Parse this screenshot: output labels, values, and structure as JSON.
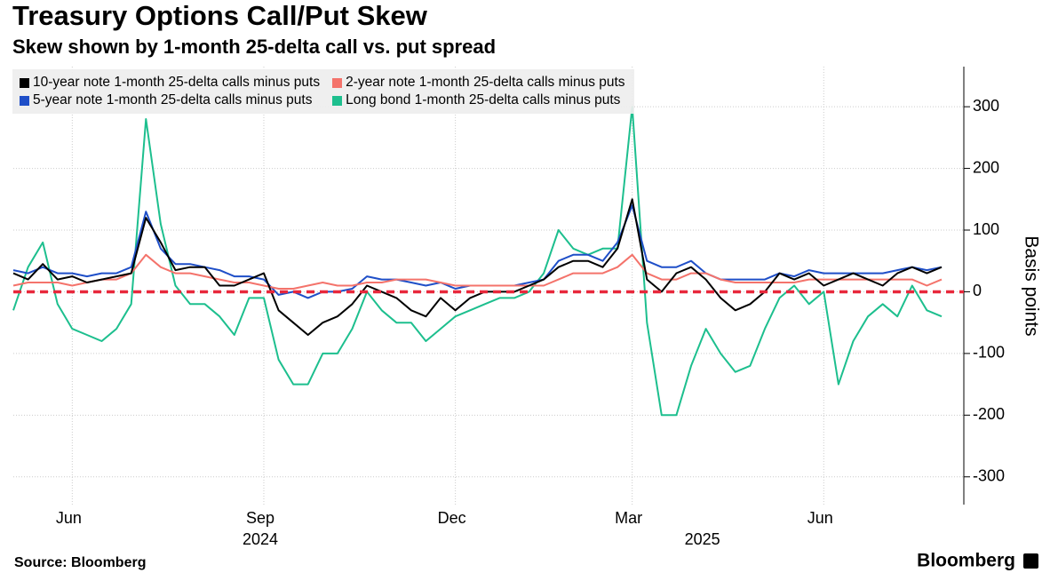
{
  "chart_data": {
    "type": "line",
    "title": "Treasury Options Call/Put Skew",
    "subtitle": "Skew shown by 1-month 25-delta call vs. put spread",
    "y_label": "Basis points",
    "source": "Source: Bloomberg",
    "brand": "Bloomberg",
    "categories": [
      null,
      null,
      null,
      null,
      "Jun",
      null,
      null,
      null,
      null,
      null,
      null,
      null,
      null,
      null,
      null,
      null,
      null,
      "Sep",
      null,
      null,
      null,
      null,
      null,
      null,
      null,
      null,
      null,
      null,
      null,
      null,
      "Dec",
      null,
      null,
      null,
      null,
      null,
      null,
      null,
      null,
      null,
      null,
      null,
      "Mar",
      null,
      null,
      null,
      null,
      null,
      null,
      null,
      null,
      null,
      null,
      null,
      null,
      "Jun",
      null,
      null,
      null,
      null,
      null,
      null,
      null,
      null
    ],
    "year_labels": [
      null,
      null,
      null,
      null,
      null,
      null,
      null,
      null,
      null,
      null,
      null,
      null,
      null,
      null,
      null,
      null,
      null,
      "2024",
      null,
      null,
      null,
      null,
      null,
      null,
      null,
      null,
      null,
      null,
      null,
      null,
      null,
      null,
      null,
      null,
      null,
      null,
      null,
      null,
      null,
      null,
      null,
      null,
      null,
      null,
      null,
      null,
      null,
      "2025",
      null,
      null,
      null,
      null,
      null,
      null,
      null,
      null,
      null,
      null,
      null,
      null,
      null,
      null,
      null,
      null
    ],
    "series": [
      {
        "name": "10-year note 1-month 25-delta calls minus puts",
        "color": "#000000",
        "values": [
          30,
          20,
          45,
          20,
          25,
          15,
          20,
          25,
          30,
          120,
          80,
          35,
          40,
          40,
          10,
          10,
          20,
          30,
          -30,
          -50,
          -70,
          -50,
          -40,
          -20,
          10,
          0,
          -10,
          -30,
          -40,
          -10,
          -30,
          -10,
          0,
          0,
          0,
          10,
          20,
          40,
          50,
          50,
          40,
          70,
          150,
          20,
          0,
          30,
          40,
          20,
          -10,
          -30,
          -20,
          0,
          30,
          20,
          30,
          10,
          20,
          30,
          20,
          10,
          30,
          40,
          30,
          40
        ]
      },
      {
        "name": "2-year note 1-month 25-delta calls minus puts",
        "color": "#f4736b",
        "values": [
          10,
          15,
          15,
          15,
          10,
          15,
          20,
          20,
          30,
          60,
          40,
          30,
          30,
          25,
          20,
          15,
          15,
          10,
          5,
          5,
          10,
          15,
          10,
          10,
          15,
          15,
          20,
          20,
          20,
          15,
          10,
          10,
          10,
          10,
          10,
          10,
          10,
          20,
          30,
          30,
          30,
          40,
          60,
          30,
          20,
          20,
          30,
          30,
          20,
          15,
          15,
          15,
          15,
          15,
          20,
          20,
          20,
          20,
          20,
          20,
          20,
          20,
          10,
          20
        ]
      },
      {
        "name": "5-year note 1-month 25-delta calls minus puts",
        "color": "#1f4fc8",
        "values": [
          35,
          30,
          40,
          30,
          30,
          25,
          30,
          30,
          40,
          130,
          70,
          45,
          45,
          40,
          35,
          25,
          25,
          20,
          -5,
          0,
          -10,
          0,
          0,
          5,
          25,
          20,
          20,
          15,
          10,
          15,
          5,
          10,
          10,
          10,
          10,
          15,
          20,
          50,
          60,
          60,
          50,
          80,
          140,
          50,
          40,
          40,
          50,
          30,
          20,
          20,
          20,
          20,
          30,
          25,
          35,
          30,
          30,
          30,
          30,
          30,
          35,
          40,
          35,
          40
        ]
      },
      {
        "name": "Long bond 1-month 25-delta calls minus puts",
        "color": "#1dbf8e",
        "values": [
          -30,
          40,
          80,
          -20,
          -60,
          -70,
          -80,
          -60,
          -20,
          280,
          110,
          10,
          -20,
          -20,
          -40,
          -70,
          -10,
          -10,
          -110,
          -150,
          -150,
          -100,
          -100,
          -60,
          0,
          -30,
          -50,
          -50,
          -80,
          -60,
          -40,
          -30,
          -20,
          -10,
          -10,
          0,
          30,
          100,
          70,
          60,
          70,
          70,
          300,
          -50,
          -200,
          -200,
          -120,
          -60,
          -100,
          -130,
          -120,
          -60,
          -10,
          10,
          -20,
          0,
          -150,
          -80,
          -40,
          -20,
          -40,
          10,
          -30,
          -40
        ]
      }
    ],
    "ylim": [
      -345,
      365
    ],
    "yticks": [
      -300,
      -200,
      -100,
      0,
      100,
      200,
      300
    ],
    "ref_line": {
      "value": 0,
      "color": "#e8283c"
    },
    "grid": true,
    "legend": "top-left"
  }
}
